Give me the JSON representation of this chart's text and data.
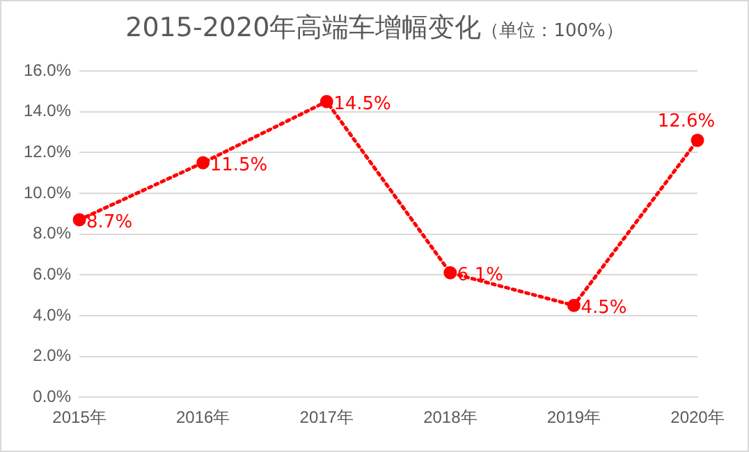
{
  "chart_data": {
    "type": "line",
    "title": "2015-2020年高端车增幅变化",
    "subtitle": "（单位：100%）",
    "categories": [
      "2015年",
      "2016年",
      "2017年",
      "2018年",
      "2019年",
      "2020年"
    ],
    "series": [
      {
        "color": "#ff0000",
        "values": [
          8.7,
          11.5,
          14.5,
          6.1,
          4.5,
          12.6
        ],
        "value_labels": [
          "8.7%",
          "11.5%",
          "14.5%",
          "6.1%",
          "4.5%",
          "12.6%"
        ]
      }
    ],
    "ylim": [
      0,
      16
    ],
    "yticks": [
      {
        "value": 0,
        "label": "0.0%"
      },
      {
        "value": 2,
        "label": "2.0%"
      },
      {
        "value": 4,
        "label": "4.0%"
      },
      {
        "value": 6,
        "label": "6.0%"
      },
      {
        "value": 8,
        "label": "8.0%"
      },
      {
        "value": 10,
        "label": "10.0%"
      },
      {
        "value": 12,
        "label": "12.0%"
      },
      {
        "value": 14,
        "label": "14.0%"
      },
      {
        "value": 16,
        "label": "16.0%"
      }
    ],
    "grid": "y",
    "legend": false,
    "marker": "circle",
    "line_style": "dotted"
  }
}
